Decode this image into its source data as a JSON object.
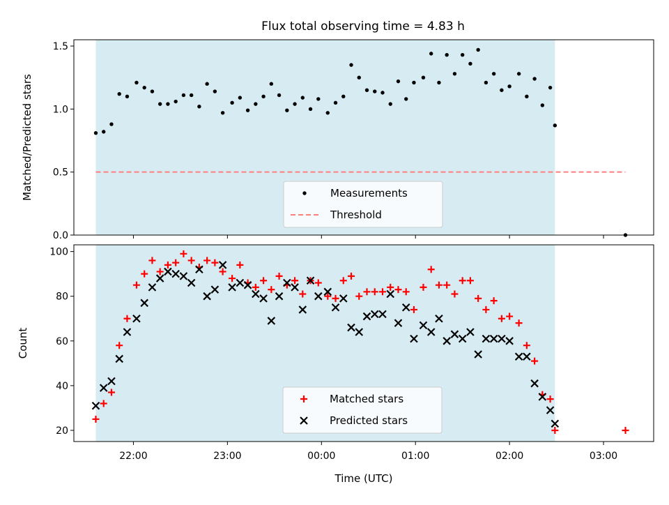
{
  "title": "Flux total observing time = 4.83 h",
  "colors": {
    "observing_span": "#add8e6",
    "matched": "#ff0000",
    "predicted": "#000000",
    "threshold": "#ff7f7f",
    "measurement": "#000000"
  },
  "chart_data": [
    {
      "type": "scatter",
      "ylabel": "Matched/Predicted stars",
      "xlim": [
        "21:22",
        "03:32"
      ],
      "ylim": [
        0,
        1.55
      ],
      "yticks": [
        {
          "v": 0,
          "label": "0.0"
        },
        {
          "v": 0.5,
          "label": "0.5"
        },
        {
          "v": 1.0,
          "label": "1.0"
        },
        {
          "v": 1.5,
          "label": "1.5"
        }
      ],
      "shaded_span": [
        "21:36",
        "02:29"
      ],
      "legend": {
        "placement": "lower-center",
        "entries": [
          "Measurements",
          "Threshold"
        ]
      },
      "threshold": {
        "name": "Threshold",
        "y": 0.5,
        "x": [
          "21:36",
          "03:14"
        ]
      },
      "series": [
        {
          "name": "Measurements",
          "points": [
            [
              "21:36",
              0.81
            ],
            [
              "21:41",
              0.82
            ],
            [
              "21:46",
              0.88
            ],
            [
              "21:51",
              1.12
            ],
            [
              "21:56",
              1.1
            ],
            [
              "22:02",
              1.21
            ],
            [
              "22:07",
              1.17
            ],
            [
              "22:12",
              1.14
            ],
            [
              "22:17",
              1.04
            ],
            [
              "22:22",
              1.04
            ],
            [
              "22:27",
              1.06
            ],
            [
              "22:32",
              1.11
            ],
            [
              "22:37",
              1.11
            ],
            [
              "22:42",
              1.02
            ],
            [
              "22:47",
              1.2
            ],
            [
              "22:52",
              1.14
            ],
            [
              "22:57",
              0.97
            ],
            [
              "23:03",
              1.05
            ],
            [
              "23:08",
              1.09
            ],
            [
              "23:13",
              0.99
            ],
            [
              "23:18",
              1.04
            ],
            [
              "23:23",
              1.1
            ],
            [
              "23:28",
              1.2
            ],
            [
              "23:33",
              1.11
            ],
            [
              "23:38",
              0.99
            ],
            [
              "23:43",
              1.04
            ],
            [
              "23:48",
              1.09
            ],
            [
              "23:53",
              1.0
            ],
            [
              "23:58",
              1.08
            ],
            [
              "00:04",
              0.97
            ],
            [
              "00:09",
              1.05
            ],
            [
              "00:14",
              1.1
            ],
            [
              "00:19",
              1.35
            ],
            [
              "00:24",
              1.25
            ],
            [
              "00:29",
              1.15
            ],
            [
              "00:34",
              1.14
            ],
            [
              "00:39",
              1.13
            ],
            [
              "00:44",
              1.04
            ],
            [
              "00:49",
              1.22
            ],
            [
              "00:54",
              1.08
            ],
            [
              "00:59",
              1.21
            ],
            [
              "01:05",
              1.25
            ],
            [
              "01:10",
              1.44
            ],
            [
              "01:15",
              1.21
            ],
            [
              "01:20",
              1.43
            ],
            [
              "01:25",
              1.28
            ],
            [
              "01:30",
              1.43
            ],
            [
              "01:35",
              1.36
            ],
            [
              "01:40",
              1.47
            ],
            [
              "01:45",
              1.21
            ],
            [
              "01:50",
              1.28
            ],
            [
              "01:55",
              1.15
            ],
            [
              "02:00",
              1.18
            ],
            [
              "02:06",
              1.28
            ],
            [
              "02:11",
              1.1
            ],
            [
              "02:16",
              1.24
            ],
            [
              "02:21",
              1.03
            ],
            [
              "02:26",
              1.17
            ],
            [
              "02:29",
              0.87
            ],
            [
              "03:14",
              0.0
            ]
          ]
        }
      ]
    },
    {
      "type": "scatter",
      "xlabel": "Time (UTC)",
      "ylabel": "Count",
      "xlim": [
        "21:22",
        "03:32"
      ],
      "ylim": [
        15,
        103
      ],
      "yticks": [
        20,
        40,
        60,
        80,
        100
      ],
      "xticks": [
        "22:00",
        "23:00",
        "00:00",
        "01:00",
        "02:00",
        "03:00"
      ],
      "shaded_span": [
        "21:36",
        "02:29"
      ],
      "legend": {
        "placement": "lower-center",
        "entries": [
          "Matched stars",
          "Predicted stars"
        ]
      },
      "series": [
        {
          "name": "Matched stars",
          "marker": "+",
          "points": [
            [
              "21:36",
              25
            ],
            [
              "21:41",
              32
            ],
            [
              "21:46",
              37
            ],
            [
              "21:51",
              58
            ],
            [
              "21:56",
              70
            ],
            [
              "22:02",
              85
            ],
            [
              "22:07",
              90
            ],
            [
              "22:12",
              96
            ],
            [
              "22:17",
              91
            ],
            [
              "22:22",
              94
            ],
            [
              "22:27",
              95
            ],
            [
              "22:32",
              99
            ],
            [
              "22:37",
              96
            ],
            [
              "22:42",
              93
            ],
            [
              "22:47",
              96
            ],
            [
              "22:52",
              95
            ],
            [
              "22:57",
              91
            ],
            [
              "23:03",
              88
            ],
            [
              "23:08",
              94
            ],
            [
              "23:13",
              86
            ],
            [
              "23:18",
              84
            ],
            [
              "23:23",
              87
            ],
            [
              "23:28",
              83
            ],
            [
              "23:33",
              89
            ],
            [
              "23:38",
              85
            ],
            [
              "23:43",
              87
            ],
            [
              "23:48",
              81
            ],
            [
              "23:53",
              87
            ],
            [
              "23:58",
              86
            ],
            [
              "00:04",
              80
            ],
            [
              "00:09",
              79
            ],
            [
              "00:14",
              87
            ],
            [
              "00:19",
              89
            ],
            [
              "00:24",
              80
            ],
            [
              "00:29",
              82
            ],
            [
              "00:34",
              82
            ],
            [
              "00:39",
              82
            ],
            [
              "00:44",
              84
            ],
            [
              "00:49",
              83
            ],
            [
              "00:54",
              82
            ],
            [
              "00:59",
              74
            ],
            [
              "01:05",
              84
            ],
            [
              "01:10",
              92
            ],
            [
              "01:15",
              85
            ],
            [
              "01:20",
              85
            ],
            [
              "01:25",
              81
            ],
            [
              "01:30",
              87
            ],
            [
              "01:35",
              87
            ],
            [
              "01:40",
              79
            ],
            [
              "01:45",
              74
            ],
            [
              "01:50",
              78
            ],
            [
              "01:55",
              70
            ],
            [
              "02:00",
              71
            ],
            [
              "02:06",
              68
            ],
            [
              "02:11",
              58
            ],
            [
              "02:16",
              51
            ],
            [
              "02:21",
              36
            ],
            [
              "02:26",
              34
            ],
            [
              "02:29",
              20
            ],
            [
              "03:14",
              20
            ]
          ]
        },
        {
          "name": "Predicted stars",
          "marker": "x",
          "points": [
            [
              "21:36",
              31
            ],
            [
              "21:41",
              39
            ],
            [
              "21:46",
              42
            ],
            [
              "21:51",
              52
            ],
            [
              "21:56",
              64
            ],
            [
              "22:02",
              70
            ],
            [
              "22:07",
              77
            ],
            [
              "22:12",
              84
            ],
            [
              "22:17",
              88
            ],
            [
              "22:22",
              91
            ],
            [
              "22:27",
              90
            ],
            [
              "22:32",
              89
            ],
            [
              "22:37",
              86
            ],
            [
              "22:42",
              92
            ],
            [
              "22:47",
              80
            ],
            [
              "22:52",
              83
            ],
            [
              "22:57",
              94
            ],
            [
              "23:03",
              84
            ],
            [
              "23:08",
              86
            ],
            [
              "23:13",
              85
            ],
            [
              "23:18",
              81
            ],
            [
              "23:23",
              79
            ],
            [
              "23:28",
              69
            ],
            [
              "23:33",
              80
            ],
            [
              "23:38",
              86
            ],
            [
              "23:43",
              84
            ],
            [
              "23:48",
              74
            ],
            [
              "23:53",
              87
            ],
            [
              "23:58",
              80
            ],
            [
              "00:04",
              82
            ],
            [
              "00:09",
              75
            ],
            [
              "00:14",
              79
            ],
            [
              "00:19",
              66
            ],
            [
              "00:24",
              64
            ],
            [
              "00:29",
              71
            ],
            [
              "00:34",
              72
            ],
            [
              "00:39",
              72
            ],
            [
              "00:44",
              81
            ],
            [
              "00:49",
              68
            ],
            [
              "00:54",
              75
            ],
            [
              "00:59",
              61
            ],
            [
              "01:05",
              67
            ],
            [
              "01:10",
              64
            ],
            [
              "01:15",
              70
            ],
            [
              "01:20",
              60
            ],
            [
              "01:25",
              63
            ],
            [
              "01:30",
              61
            ],
            [
              "01:35",
              64
            ],
            [
              "01:40",
              54
            ],
            [
              "01:45",
              61
            ],
            [
              "01:50",
              61
            ],
            [
              "01:55",
              61
            ],
            [
              "02:00",
              60
            ],
            [
              "02:06",
              53
            ],
            [
              "02:11",
              53
            ],
            [
              "02:16",
              41
            ],
            [
              "02:21",
              35
            ],
            [
              "02:26",
              29
            ],
            [
              "02:29",
              23
            ]
          ]
        }
      ]
    }
  ]
}
